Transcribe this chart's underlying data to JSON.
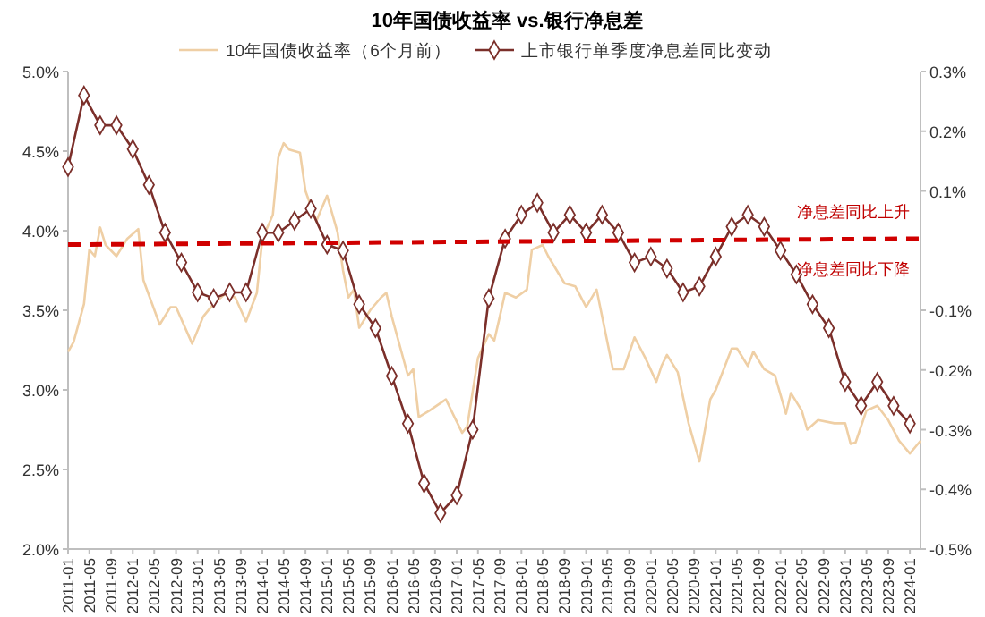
{
  "chart_data": {
    "type": "line",
    "title": "10年国债收益率 vs.银行净息差",
    "legend": "top",
    "grid": false,
    "xlim": [
      "2011-01",
      "2024-03"
    ],
    "xticks": [
      "2011-01",
      "2011-05",
      "2011-09",
      "2012-01",
      "2012-05",
      "2012-09",
      "2013-01",
      "2013-05",
      "2013-09",
      "2014-01",
      "2014-05",
      "2014-09",
      "2015-01",
      "2015-05",
      "2015-09",
      "2016-01",
      "2016-05",
      "2016-09",
      "2017-01",
      "2017-05",
      "2017-09",
      "2018-01",
      "2018-05",
      "2018-09",
      "2019-01",
      "2019-05",
      "2019-09",
      "2020-01",
      "2020-05",
      "2020-09",
      "2021-01",
      "2021-05",
      "2021-09",
      "2022-01",
      "2022-05",
      "2022-09",
      "2023-01",
      "2023-05",
      "2023-09",
      "2024-01"
    ],
    "ylim": [
      2,
      5
    ],
    "yticks": [
      {
        "value": 2,
        "label": "2.0%"
      },
      {
        "value": 2.5,
        "label": "2.5%"
      },
      {
        "value": 3,
        "label": "3.0%"
      },
      {
        "value": 3.5,
        "label": "3.5%"
      },
      {
        "value": 4,
        "label": "4.0%"
      },
      {
        "value": 4.5,
        "label": "4.5%"
      },
      {
        "value": 5,
        "label": "5.0%"
      }
    ],
    "y2lim": [
      -0.5,
      0.3
    ],
    "y2ticks": [
      {
        "value": -0.5,
        "label": "-0.5%"
      },
      {
        "value": -0.4,
        "label": "-0.4%"
      },
      {
        "value": -0.3,
        "label": "-0.3%"
      },
      {
        "value": -0.2,
        "label": "-0.2%"
      },
      {
        "value": -0.1,
        "label": "-0.1%"
      },
      {
        "value": 0.1,
        "label": "0.1%"
      },
      {
        "value": 0.2,
        "label": "0.2%"
      },
      {
        "value": 0.3,
        "label": "0.3%"
      }
    ],
    "annotations": [
      "净息差同比上升",
      "净息差同比下降"
    ],
    "series": [
      {
        "name": "10年国债收益率（6个月前）",
        "color": "#efcfa5",
        "marker": "none",
        "line_style": "solid",
        "x": [
          "2011-01",
          "2011-02",
          "2011-04",
          "2011-05",
          "2011-06",
          "2011-07",
          "2011-08",
          "2011-10",
          "2011-12",
          "2012-02",
          "2012-03",
          "2012-06",
          "2012-08",
          "2012-09",
          "2012-12",
          "2013-02",
          "2013-04",
          "2013-06",
          "2013-08",
          "2013-10",
          "2013-12",
          "2014-01",
          "2014-03",
          "2014-04",
          "2014-05",
          "2014-06",
          "2014-08",
          "2014-09",
          "2014-11",
          "2015-01",
          "2015-03",
          "2015-04",
          "2015-05",
          "2015-06",
          "2015-07",
          "2015-09",
          "2015-11",
          "2015-12",
          "2016-01",
          "2016-04",
          "2016-05",
          "2016-06",
          "2016-08",
          "2016-11",
          "2017-02",
          "2017-03",
          "2017-05",
          "2017-07",
          "2017-08",
          "2017-09",
          "2017-10",
          "2017-12",
          "2018-02",
          "2018-03",
          "2018-05",
          "2018-06",
          "2018-09",
          "2018-11",
          "2019-01",
          "2019-03",
          "2019-06",
          "2019-08",
          "2019-10",
          "2019-12",
          "2020-02",
          "2020-03",
          "2020-04",
          "2020-06",
          "2020-08",
          "2020-10",
          "2020-12",
          "2021-01",
          "2021-04",
          "2021-05",
          "2021-07",
          "2021-08",
          "2021-10",
          "2021-12",
          "2022-02",
          "2022-03",
          "2022-05",
          "2022-06",
          "2022-08",
          "2022-11",
          "2023-01",
          "2023-02",
          "2023-03",
          "2023-05",
          "2023-07",
          "2023-09",
          "2023-11",
          "2024-01",
          "2024-03"
        ],
        "values": [
          3.24,
          3.3,
          3.54,
          3.88,
          3.84,
          4.02,
          3.91,
          3.84,
          3.95,
          4.01,
          3.69,
          3.41,
          3.52,
          3.52,
          3.29,
          3.46,
          3.54,
          3.6,
          3.58,
          3.43,
          3.61,
          3.95,
          4.1,
          4.46,
          4.55,
          4.51,
          4.49,
          4.25,
          4.06,
          4.22,
          3.99,
          3.75,
          3.58,
          3.63,
          3.39,
          3.5,
          3.58,
          3.61,
          3.46,
          3.09,
          3.13,
          2.83,
          2.87,
          2.94,
          2.73,
          2.77,
          3.2,
          3.35,
          3.31,
          3.46,
          3.61,
          3.58,
          3.63,
          3.88,
          3.91,
          3.84,
          3.67,
          3.65,
          3.52,
          3.63,
          3.13,
          3.13,
          3.33,
          3.2,
          3.05,
          3.15,
          3.22,
          3.11,
          2.79,
          2.55,
          2.94,
          3.0,
          3.26,
          3.26,
          3.15,
          3.24,
          3.13,
          3.09,
          2.85,
          2.98,
          2.87,
          2.75,
          2.81,
          2.79,
          2.79,
          2.66,
          2.67,
          2.87,
          2.9,
          2.81,
          2.68,
          2.6,
          2.68
        ]
      },
      {
        "name": "上市银行单季度净息差同比变动",
        "axis": "y2",
        "color": "#7b2f2a",
        "marker": "diamond",
        "line_style": "solid",
        "x": [
          "2011-01",
          "2011-04",
          "2011-07",
          "2011-10",
          "2012-01",
          "2012-04",
          "2012-07",
          "2012-10",
          "2013-01",
          "2013-04",
          "2013-07",
          "2013-10",
          "2014-01",
          "2014-04",
          "2014-07",
          "2014-10",
          "2015-01",
          "2015-04",
          "2015-07",
          "2015-10",
          "2016-01",
          "2016-04",
          "2016-07",
          "2016-10",
          "2017-01",
          "2017-04",
          "2017-07",
          "2017-10",
          "2018-01",
          "2018-04",
          "2018-07",
          "2018-10",
          "2019-01",
          "2019-04",
          "2019-07",
          "2019-10",
          "2020-01",
          "2020-04",
          "2020-07",
          "2020-10",
          "2021-01",
          "2021-04",
          "2021-07",
          "2021-10",
          "2022-01",
          "2022-04",
          "2022-07",
          "2022-10",
          "2023-01",
          "2023-04",
          "2023-07",
          "2023-10",
          "2024-01"
        ],
        "values": [
          0.14,
          0.26,
          0.21,
          0.21,
          0.17,
          0.11,
          0.03,
          -0.02,
          -0.07,
          -0.08,
          -0.07,
          -0.07,
          0.03,
          0.03,
          0.05,
          0.07,
          0.01,
          0.0,
          -0.09,
          -0.13,
          -0.21,
          -0.29,
          -0.39,
          -0.44,
          -0.41,
          -0.3,
          -0.08,
          0.02,
          0.06,
          0.08,
          0.03,
          0.06,
          0.03,
          0.06,
          0.03,
          -0.02,
          -0.01,
          -0.03,
          -0.07,
          -0.06,
          -0.01,
          0.04,
          0.06,
          0.04,
          0.0,
          -0.04,
          -0.09,
          -0.13,
          -0.22,
          -0.26,
          -0.22,
          -0.26,
          -0.29
        ]
      },
      {
        "axis": "y2",
        "color": "#d00000",
        "marker": "none",
        "line_style": "dashed",
        "x": [
          "2011-01",
          "2024-03"
        ],
        "values": [
          0.01,
          0.02
        ]
      }
    ]
  }
}
